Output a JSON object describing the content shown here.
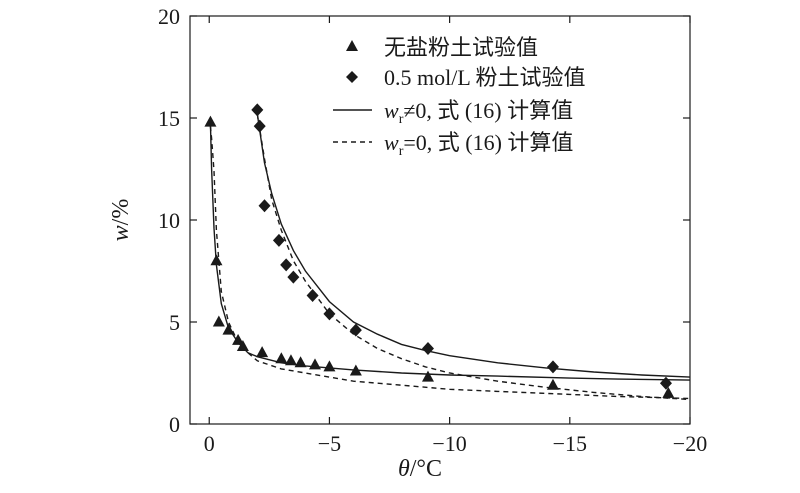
{
  "chart_data": {
    "type": "scatter",
    "xlabel": {
      "var": "θ",
      "unit": "/°C"
    },
    "ylabel": {
      "var": "w",
      "unit": "/%"
    },
    "xlim": [
      0.8,
      -20
    ],
    "ylim": [
      0,
      20
    ],
    "xticks": [
      0,
      -5,
      -10,
      -15,
      -20
    ],
    "xtick_labels": [
      "0",
      "−5",
      "−10",
      "−15",
      "−20"
    ],
    "yticks": [
      0,
      5,
      10,
      15,
      20
    ],
    "ytick_labels": [
      "0",
      "5",
      "10",
      "15",
      "20"
    ],
    "grid": false,
    "legend_position": "top-right",
    "legend": [
      {
        "text": "无盐粉土试验值",
        "marker": "triangle"
      },
      {
        "text": "0.5 mol/L 粉土试验值",
        "marker": "diamond"
      },
      {
        "text_var": "w",
        "text_sub": "r",
        "text_rest": "≠0, 式 (16) 计算值",
        "line": "solid"
      },
      {
        "text_var": "w",
        "text_sub": "r",
        "text_rest": "=0, 式 (16) 计算值",
        "line": "dashed"
      }
    ],
    "series": [
      {
        "name": "无盐粉土试验值",
        "kind": "scatter",
        "marker": "triangle",
        "x": [
          -0.05,
          -0.3,
          -0.4,
          -0.8,
          -1.2,
          -1.4,
          -2.2,
          -3.0,
          -3.4,
          -3.8,
          -4.4,
          -5.0,
          -6.1,
          -9.1,
          -14.3,
          -19.1
        ],
        "y": [
          14.8,
          8.0,
          5.0,
          4.6,
          4.1,
          3.8,
          3.5,
          3.2,
          3.1,
          3.0,
          2.9,
          2.8,
          2.6,
          2.3,
          1.9,
          1.5
        ]
      },
      {
        "name": "0.5 mol/L 粉土试验值",
        "kind": "scatter",
        "marker": "diamond",
        "x": [
          -2.0,
          -2.1,
          -2.3,
          -2.9,
          -3.2,
          -3.5,
          -4.3,
          -5.0,
          -6.1,
          -9.1,
          -14.3,
          -19.0
        ],
        "y": [
          15.4,
          14.6,
          10.7,
          9.0,
          7.8,
          7.2,
          6.3,
          5.4,
          4.6,
          3.7,
          2.8,
          2.0
        ]
      },
      {
        "name": "wr≠0, 式 (16) 计算值 (无盐)",
        "kind": "line",
        "style": "solid",
        "x": [
          -0.05,
          -0.1,
          -0.2,
          -0.3,
          -0.5,
          -0.8,
          -1.2,
          -1.6,
          -2.0,
          -3.0,
          -4.0,
          -5.0,
          -6.0,
          -8.0,
          -10.0,
          -12.0,
          -15.0,
          -17.0,
          -20.0
        ],
        "y": [
          14.8,
          12.5,
          9.6,
          7.8,
          5.9,
          4.7,
          4.0,
          3.5,
          3.3,
          3.0,
          2.85,
          2.75,
          2.65,
          2.5,
          2.4,
          2.35,
          2.25,
          2.2,
          2.15
        ]
      },
      {
        "name": "wr=0, 式 (16) 计算值 (无盐)",
        "kind": "line",
        "style": "dashed",
        "x": [
          -0.05,
          -0.1,
          -0.2,
          -0.3,
          -0.5,
          -0.8,
          -1.2,
          -1.6,
          -2.0,
          -3.0,
          -4.0,
          -5.0,
          -6.0,
          -8.0,
          -10.0,
          -12.0,
          -15.0,
          -17.0,
          -20.0
        ],
        "y": [
          14.6,
          14.0,
          12.4,
          9.5,
          6.5,
          5.0,
          4.0,
          3.5,
          3.1,
          2.7,
          2.5,
          2.3,
          2.1,
          1.9,
          1.7,
          1.6,
          1.45,
          1.35,
          1.25
        ]
      },
      {
        "name": "wr≠0, 式 (16) 计算值 (0.5 mol/L)",
        "kind": "line",
        "style": "solid",
        "x": [
          -2.0,
          -2.3,
          -2.6,
          -3.0,
          -3.5,
          -4.0,
          -5.0,
          -6.0,
          -7.0,
          -8.0,
          -9.0,
          -10.0,
          -12.0,
          -14.0,
          -16.0,
          -18.0,
          -20.0
        ],
        "y": [
          15.2,
          12.8,
          11.3,
          9.8,
          8.5,
          7.5,
          6.0,
          5.0,
          4.4,
          3.9,
          3.6,
          3.35,
          3.0,
          2.75,
          2.55,
          2.4,
          2.3
        ]
      },
      {
        "name": "wr=0, 式 (16) 计算值 (0.5 mol/L)",
        "kind": "line",
        "style": "dashed",
        "x": [
          -2.0,
          -2.3,
          -2.6,
          -3.0,
          -3.5,
          -4.0,
          -5.0,
          -6.0,
          -7.0,
          -8.0,
          -9.0,
          -10.0,
          -12.0,
          -14.0,
          -16.0,
          -18.0,
          -20.0
        ],
        "y": [
          15.2,
          13.0,
          11.0,
          9.5,
          8.0,
          7.0,
          5.4,
          4.4,
          3.7,
          3.2,
          2.8,
          2.5,
          2.1,
          1.8,
          1.55,
          1.35,
          1.2
        ]
      }
    ]
  }
}
